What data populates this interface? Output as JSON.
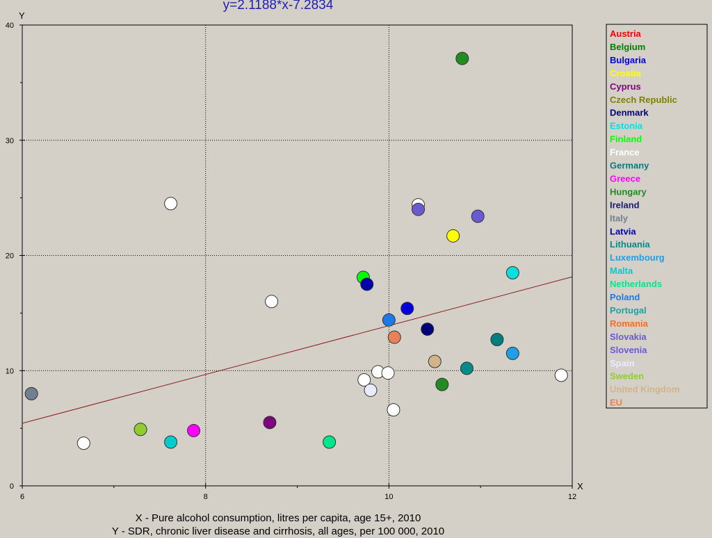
{
  "chart_data": {
    "type": "scatter",
    "title": "y=2.1188*x-7.2834",
    "xlabel": "X - Pure alcohol consumption, litres per capita, age 15+, 2010",
    "ylabel": "Y - SDR, chronic liver disease and cirrhosis, all ages, per 100 000, 2010",
    "x_axis_name": "X",
    "y_axis_name": "Y",
    "xlim": [
      6,
      12
    ],
    "ylim": [
      0,
      40
    ],
    "x_ticks": [
      6,
      8,
      10,
      12
    ],
    "y_ticks": [
      0,
      10,
      20,
      30,
      40
    ],
    "grid": true,
    "legend_position": "right",
    "trendline": {
      "slope": 2.1188,
      "intercept": -7.2834,
      "color": "#8b1a1a"
    },
    "series": [
      {
        "name": "Austria",
        "color": "#ff0000",
        "points": []
      },
      {
        "name": "Belgium",
        "color": "#008000",
        "points": []
      },
      {
        "name": "Bulgaria",
        "color": "#0000dd",
        "points": [
          [
            10.2,
            15.4
          ]
        ]
      },
      {
        "name": "Croatia",
        "color": "#ffff00",
        "points": [
          [
            10.7,
            21.7
          ]
        ]
      },
      {
        "name": "Cyprus",
        "color": "#800080",
        "points": [
          [
            8.7,
            5.5
          ]
        ]
      },
      {
        "name": "Czech Republic",
        "color": "#808000",
        "points": []
      },
      {
        "name": "Denmark",
        "color": "#00007a",
        "points": [
          [
            10.42,
            13.6
          ]
        ]
      },
      {
        "name": "Estonia",
        "color": "#00e0e0",
        "points": [
          [
            11.35,
            18.5
          ]
        ]
      },
      {
        "name": "Finland",
        "color": "#00ff00",
        "points": [
          [
            9.72,
            18.1
          ]
        ]
      },
      {
        "name": "France",
        "color": "#ffffff",
        "points": [
          [
            7.62,
            24.5
          ],
          [
            8.72,
            16.0
          ],
          [
            10.32,
            24.4
          ],
          [
            6.67,
            3.7
          ],
          [
            10.05,
            6.6
          ],
          [
            9.73,
            9.2
          ],
          [
            9.88,
            9.9
          ],
          [
            9.99,
            9.8
          ],
          [
            11.88,
            9.6
          ]
        ]
      },
      {
        "name": "Germany",
        "color": "#007d7d",
        "points": [
          [
            11.18,
            12.7
          ]
        ]
      },
      {
        "name": "Greece",
        "color": "#ff00ff",
        "points": [
          [
            7.87,
            4.8
          ]
        ]
      },
      {
        "name": "Hungary",
        "color": "#228b22",
        "points": [
          [
            10.8,
            37.1
          ],
          [
            10.58,
            8.8
          ]
        ]
      },
      {
        "name": "Ireland",
        "color": "#191970",
        "points": []
      },
      {
        "name": "Italy",
        "color": "#708090",
        "points": [
          [
            6.1,
            8.0
          ]
        ]
      },
      {
        "name": "Latvia",
        "color": "#0000aa",
        "points": [
          [
            9.76,
            17.5
          ]
        ]
      },
      {
        "name": "Lithuania",
        "color": "#008b8b",
        "points": [
          [
            10.85,
            10.2
          ]
        ]
      },
      {
        "name": "Luxembourg",
        "color": "#1ea0e6",
        "points": [
          [
            11.35,
            11.5
          ]
        ]
      },
      {
        "name": "Malta",
        "color": "#00cccc",
        "points": [
          [
            7.62,
            3.8
          ]
        ]
      },
      {
        "name": "Netherlands",
        "color": "#00e68c",
        "points": [
          [
            9.35,
            3.8
          ]
        ]
      },
      {
        "name": "Poland",
        "color": "#1e78e6",
        "points": [
          [
            10.0,
            14.4
          ]
        ]
      },
      {
        "name": "Portugal",
        "color": "#20a0a0",
        "points": []
      },
      {
        "name": "Romania",
        "color": "#ff6a1e",
        "points": []
      },
      {
        "name": "Slovakia",
        "color": "#6a5acd",
        "points": [
          [
            10.32,
            24.0
          ]
        ]
      },
      {
        "name": "Slovenia",
        "color": "#6a5ad2",
        "points": [
          [
            10.97,
            23.4
          ]
        ]
      },
      {
        "name": "Spain",
        "color": "#ebebff",
        "points": [
          [
            9.8,
            8.3
          ]
        ]
      },
      {
        "name": "Sweden",
        "color": "#8fcd2d",
        "points": [
          [
            7.29,
            4.9
          ]
        ]
      },
      {
        "name": "United Kingdom",
        "color": "#d2b48c",
        "points": [
          [
            10.5,
            10.8
          ]
        ]
      },
      {
        "name": "EU",
        "color": "#e6825a",
        "points": [
          [
            10.06,
            12.9
          ]
        ]
      }
    ]
  }
}
